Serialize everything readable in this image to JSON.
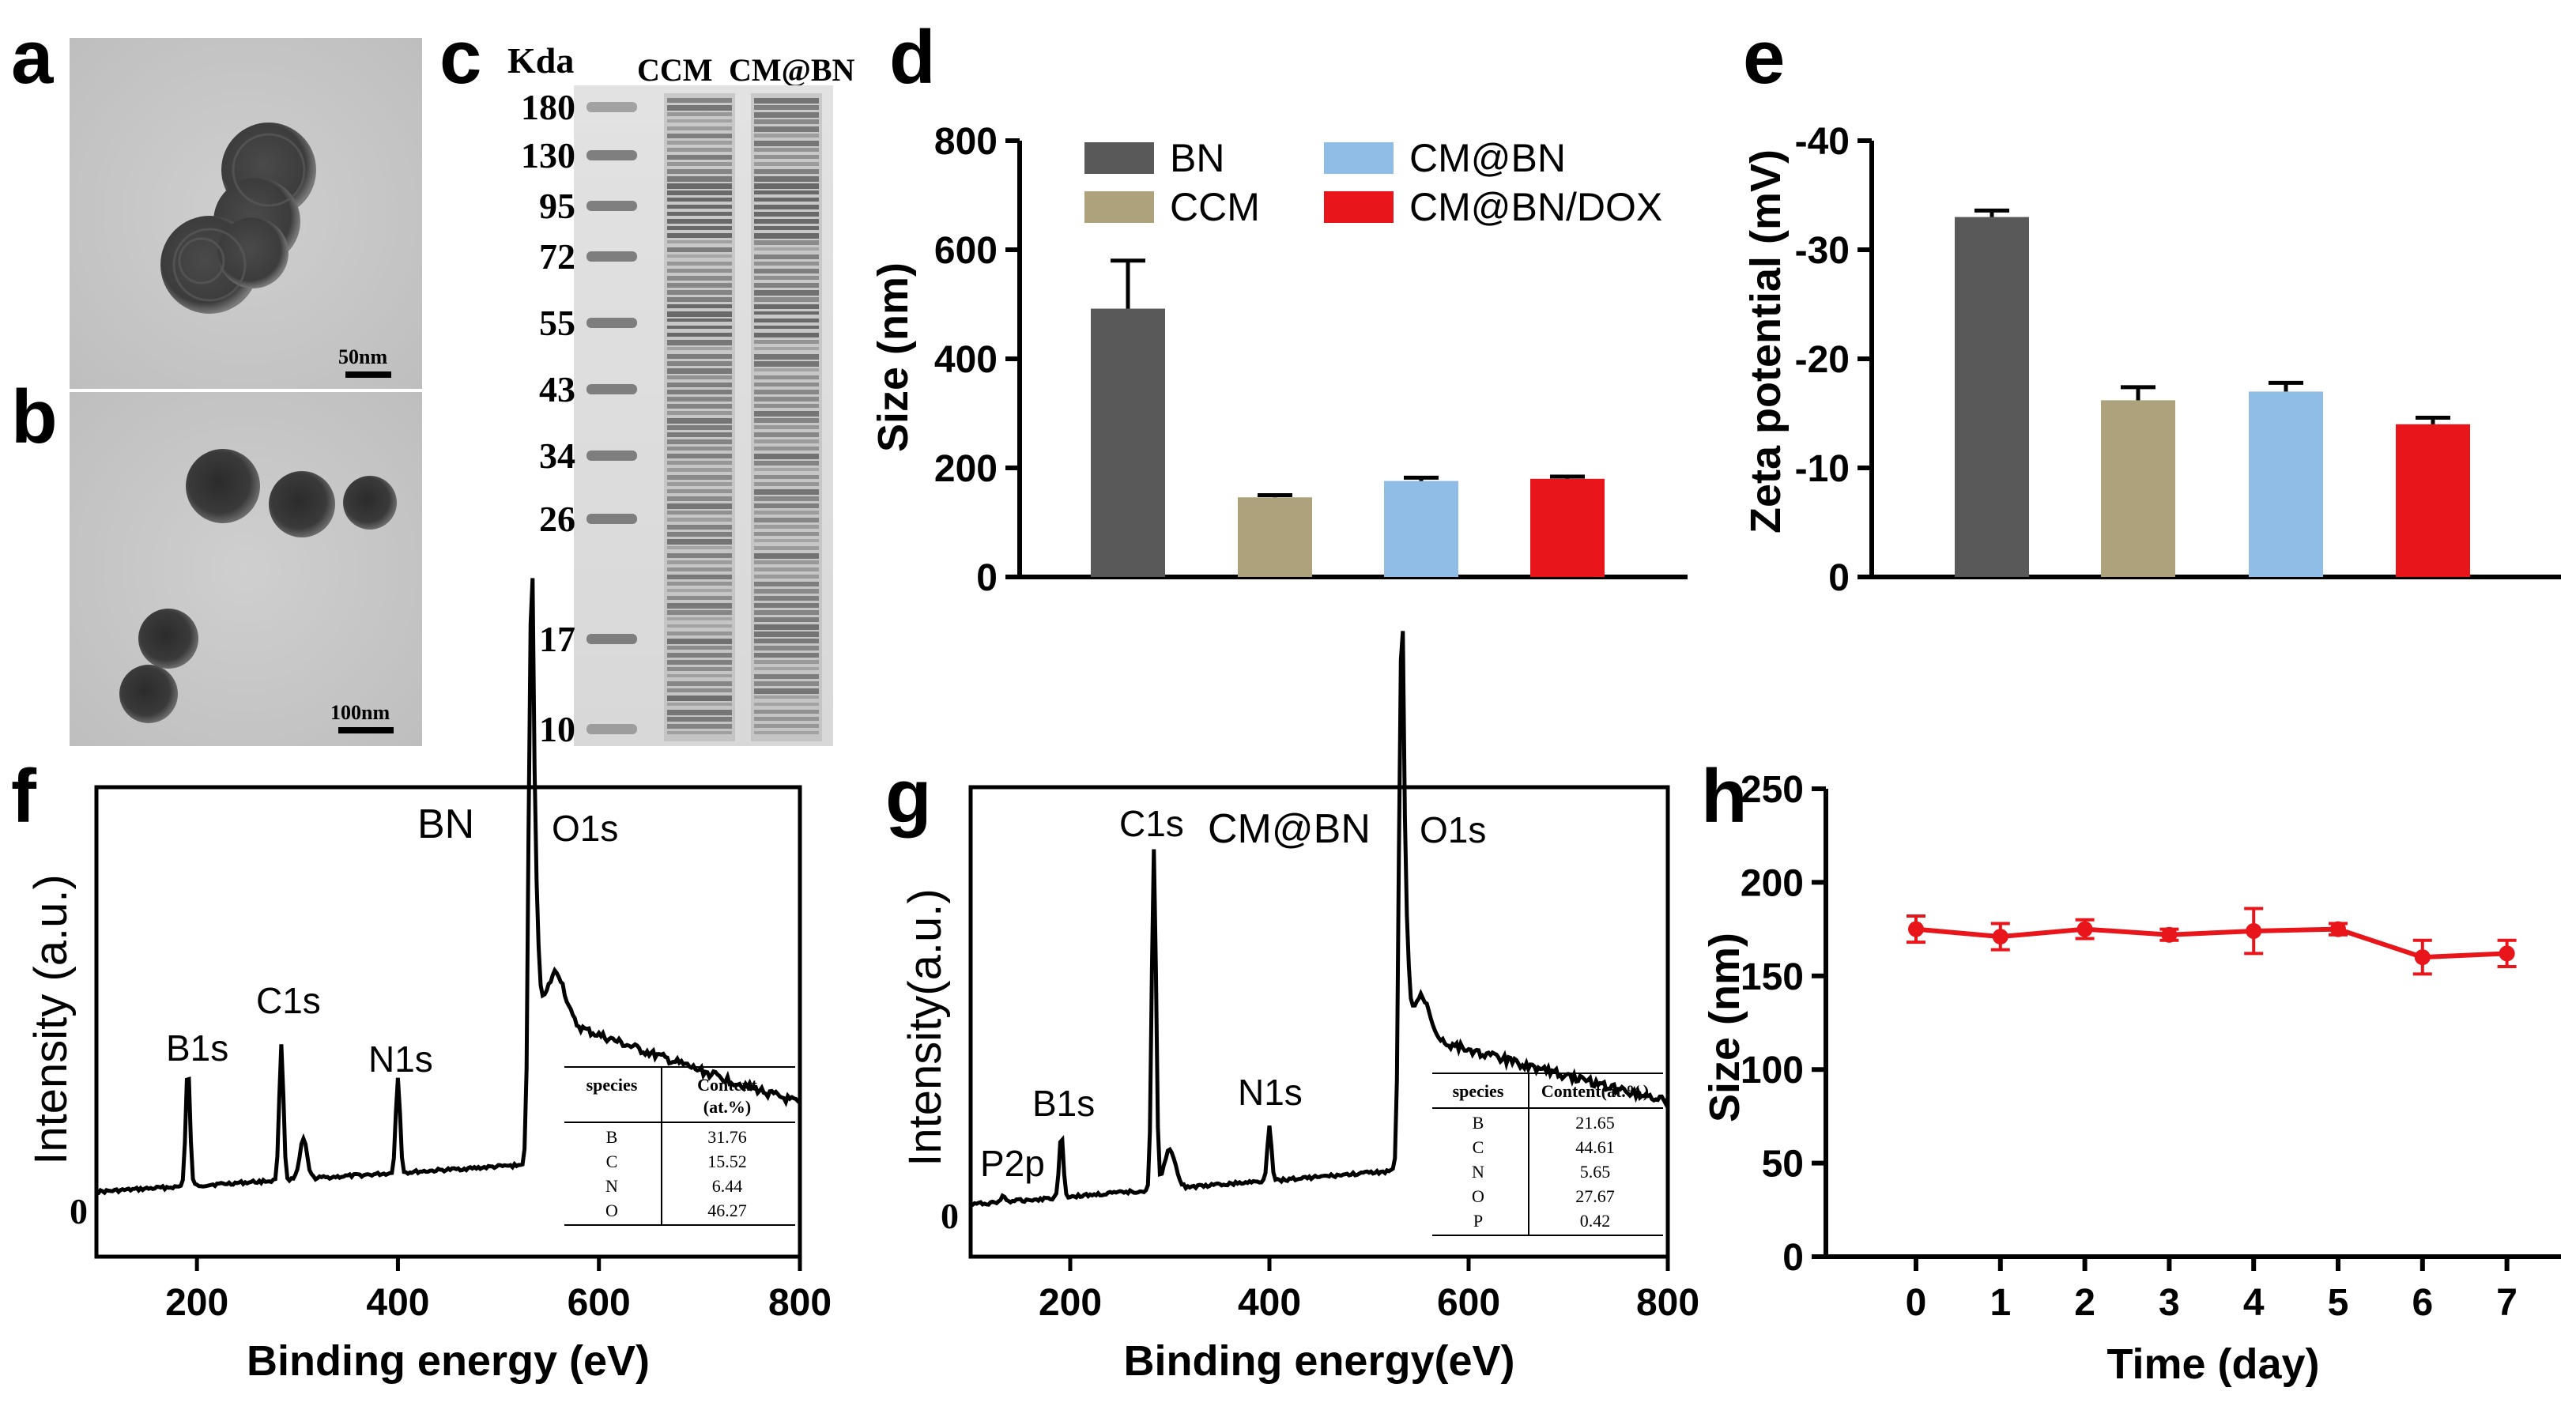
{
  "panel_labels": {
    "a": "a",
    "b": "b",
    "c": "c",
    "d": "d",
    "e": "e",
    "f": "f",
    "g": "g",
    "h": "h"
  },
  "tem": {
    "a_scale": "50nm",
    "b_scale": "100nm"
  },
  "gel": {
    "kda_label": "Kda",
    "lane_labels": [
      "CCM",
      "CM@BN"
    ],
    "markers": [
      "180",
      "130",
      "95",
      "72",
      "55",
      "43",
      "34",
      "26",
      "17",
      "10"
    ]
  },
  "colors": {
    "BN": "#595959",
    "CCM": "#ada27b",
    "CM@BN": "#8fbde6",
    "CM@BN/DOX": "#e8151b",
    "line_h": "#e8151b"
  },
  "chart_data": [
    {
      "panel": "d",
      "type": "bar",
      "categories": [
        "BN",
        "CCM",
        "CM@BN",
        "CM@BN/DOX"
      ],
      "values": [
        492,
        146,
        176,
        180
      ],
      "errors": [
        88,
        4,
        6,
        4
      ],
      "title": "",
      "xlabel": "",
      "ylabel": "Size (nm)",
      "ylim": [
        0,
        800
      ],
      "yticks": [
        "0",
        "200",
        "400",
        "600",
        "800"
      ],
      "legend": [
        "BN",
        "CCM",
        "CM@BN",
        "CM@BN/DOX"
      ],
      "legend_position": "top"
    },
    {
      "panel": "e",
      "type": "bar",
      "categories": [
        "BN",
        "CCM",
        "CM@BN",
        "CM@BN/DOX"
      ],
      "values": [
        -33,
        -16.2,
        -17,
        -14
      ],
      "errors": [
        0.6,
        1.2,
        0.8,
        0.6
      ],
      "title": "",
      "xlabel": "",
      "ylabel": "Zeta potential (mV)",
      "ylim": [
        0,
        -40
      ],
      "yticks": [
        "0",
        "-10",
        "-20",
        "-30",
        "-40"
      ]
    },
    {
      "panel": "f",
      "type": "line",
      "title": "BN",
      "xlabel": "Binding energy (eV)",
      "ylabel": "Intensity (a.u.)",
      "xlim": [
        100,
        800
      ],
      "xticks": [
        "200",
        "400",
        "600",
        "800"
      ],
      "y_zero_label": "0",
      "peaks": [
        "B1s",
        "C1s",
        "N1s",
        "O1s"
      ],
      "table": {
        "headers": [
          "species",
          "Content",
          "(at.%)"
        ],
        "rows": [
          [
            "B",
            "31.76"
          ],
          [
            "C",
            "15.52"
          ],
          [
            "N",
            "6.44"
          ],
          [
            "O",
            "46.27"
          ]
        ]
      }
    },
    {
      "panel": "g",
      "type": "line",
      "title": "CM@BN",
      "xlabel": "Binding energy(eV)",
      "ylabel": "Intensity(a.u.)",
      "xlim": [
        100,
        800
      ],
      "xticks": [
        "200",
        "400",
        "600",
        "800"
      ],
      "y_zero_label": "0",
      "peaks": [
        "P2p",
        "B1s",
        "C1s",
        "N1s",
        "O1s"
      ],
      "table": {
        "headers": [
          "species",
          "Content(at.%)"
        ],
        "rows": [
          [
            "B",
            "21.65"
          ],
          [
            "C",
            "44.61"
          ],
          [
            "N",
            "5.65"
          ],
          [
            "O",
            "27.67"
          ],
          [
            "P",
            "0.42"
          ]
        ]
      }
    },
    {
      "panel": "h",
      "type": "line",
      "x": [
        0,
        1,
        2,
        3,
        4,
        5,
        6,
        7
      ],
      "values": [
        175,
        171,
        175,
        172,
        174,
        175,
        160,
        162
      ],
      "errors": [
        7,
        7,
        5,
        3,
        12,
        3,
        9,
        7
      ],
      "title": "",
      "xlabel": "Time (day)",
      "ylabel": "Size (nm)",
      "ylim": [
        0,
        250
      ],
      "yticks": [
        "0",
        "50",
        "100",
        "150",
        "200",
        "250"
      ],
      "xticks": [
        "0",
        "1",
        "2",
        "3",
        "4",
        "5",
        "6",
        "7"
      ]
    }
  ]
}
